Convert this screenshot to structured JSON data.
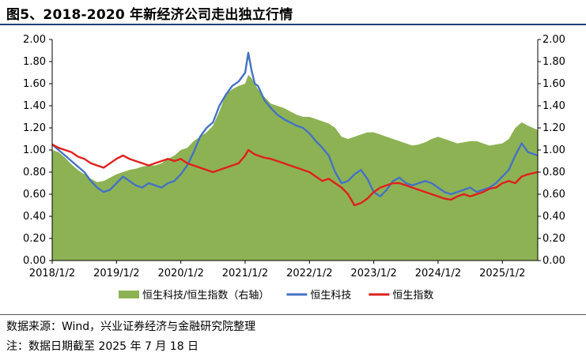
{
  "title": "图5、2018-2020 年新经济公司走出独立行情",
  "source": "数据来源：Wind，兴业证券经济与金融研究院整理",
  "footnote": "注：数据日期截至 2025 年 7 月 18 日",
  "chart_data": {
    "type": "line",
    "x_ticks": [
      "2018/1/2",
      "2019/1/2",
      "2020/1/2",
      "2021/1/2",
      "2022/1/2",
      "2023/1/2",
      "2024/1/2",
      "2025/1/2"
    ],
    "y_ticks_left": [
      "0.00",
      "0.20",
      "0.40",
      "0.60",
      "0.80",
      "1.00",
      "1.20",
      "1.40",
      "1.60",
      "1.80",
      "2.00"
    ],
    "y_ticks_right": [
      "0.00",
      "0.20",
      "0.40",
      "0.60",
      "0.80",
      "1.00",
      "1.20",
      "1.40",
      "1.60",
      "1.80",
      "2.00"
    ],
    "ylim": [
      0,
      2
    ],
    "xlim": [
      2018.0,
      2025.55
    ],
    "grid": false,
    "legend_position": "bottom",
    "series": [
      {
        "name": "恒生科技/恒生指数（右轴）",
        "type": "area",
        "axis": "right",
        "color": "#8db254",
        "x": [
          2018.0,
          2018.1,
          2018.2,
          2018.3,
          2018.4,
          2018.5,
          2018.6,
          2018.7,
          2018.8,
          2018.9,
          2019.0,
          2019.1,
          2019.2,
          2019.3,
          2019.4,
          2019.5,
          2019.6,
          2019.7,
          2019.8,
          2019.9,
          2020.0,
          2020.1,
          2020.2,
          2020.3,
          2020.4,
          2020.5,
          2020.6,
          2020.7,
          2020.8,
          2020.9,
          2021.0,
          2021.05,
          2021.1,
          2021.15,
          2021.2,
          2021.3,
          2021.4,
          2021.5,
          2021.6,
          2021.7,
          2021.8,
          2021.9,
          2022.0,
          2022.1,
          2022.2,
          2022.3,
          2022.4,
          2022.5,
          2022.6,
          2022.7,
          2022.8,
          2022.9,
          2023.0,
          2023.1,
          2023.2,
          2023.3,
          2023.4,
          2023.5,
          2023.6,
          2023.7,
          2023.8,
          2023.9,
          2024.0,
          2024.1,
          2024.2,
          2024.3,
          2024.4,
          2024.5,
          2024.6,
          2024.7,
          2024.8,
          2024.9,
          2025.0,
          2025.1,
          2025.2,
          2025.3,
          2025.4,
          2025.55
        ],
        "values": [
          1.0,
          0.98,
          0.93,
          0.87,
          0.82,
          0.78,
          0.74,
          0.71,
          0.72,
          0.75,
          0.78,
          0.8,
          0.82,
          0.83,
          0.85,
          0.86,
          0.86,
          0.88,
          0.92,
          0.95,
          1.0,
          1.02,
          1.08,
          1.12,
          1.16,
          1.22,
          1.35,
          1.5,
          1.55,
          1.58,
          1.6,
          1.68,
          1.65,
          1.6,
          1.55,
          1.48,
          1.42,
          1.4,
          1.38,
          1.35,
          1.32,
          1.3,
          1.3,
          1.28,
          1.26,
          1.24,
          1.2,
          1.12,
          1.1,
          1.12,
          1.14,
          1.16,
          1.16,
          1.14,
          1.12,
          1.1,
          1.08,
          1.06,
          1.04,
          1.05,
          1.07,
          1.1,
          1.12,
          1.1,
          1.08,
          1.06,
          1.07,
          1.08,
          1.08,
          1.06,
          1.04,
          1.05,
          1.06,
          1.1,
          1.2,
          1.25,
          1.22,
          1.18
        ]
      },
      {
        "name": "恒生科技",
        "type": "line",
        "axis": "left",
        "color": "#4472c4",
        "x": [
          2018.0,
          2018.1,
          2018.2,
          2018.3,
          2018.4,
          2018.5,
          2018.6,
          2018.7,
          2018.8,
          2018.9,
          2019.0,
          2019.1,
          2019.2,
          2019.3,
          2019.4,
          2019.5,
          2019.6,
          2019.7,
          2019.8,
          2019.9,
          2020.0,
          2020.1,
          2020.2,
          2020.3,
          2020.4,
          2020.5,
          2020.6,
          2020.7,
          2020.8,
          2020.9,
          2021.0,
          2021.05,
          2021.1,
          2021.15,
          2021.2,
          2021.3,
          2021.4,
          2021.5,
          2021.6,
          2021.7,
          2021.8,
          2021.9,
          2022.0,
          2022.1,
          2022.2,
          2022.3,
          2022.4,
          2022.5,
          2022.6,
          2022.7,
          2022.8,
          2022.9,
          2023.0,
          2023.1,
          2023.2,
          2023.3,
          2023.4,
          2023.5,
          2023.6,
          2023.7,
          2023.8,
          2023.9,
          2024.0,
          2024.1,
          2024.2,
          2024.3,
          2024.4,
          2024.5,
          2024.6,
          2024.7,
          2024.8,
          2024.9,
          2025.0,
          2025.1,
          2025.2,
          2025.3,
          2025.4,
          2025.55
        ],
        "values": [
          1.05,
          1.0,
          0.95,
          0.9,
          0.85,
          0.8,
          0.72,
          0.66,
          0.62,
          0.64,
          0.7,
          0.76,
          0.72,
          0.68,
          0.66,
          0.7,
          0.68,
          0.66,
          0.7,
          0.72,
          0.78,
          0.86,
          0.98,
          1.12,
          1.2,
          1.25,
          1.4,
          1.5,
          1.58,
          1.62,
          1.7,
          1.88,
          1.72,
          1.6,
          1.58,
          1.45,
          1.38,
          1.32,
          1.28,
          1.25,
          1.22,
          1.2,
          1.15,
          1.08,
          1.02,
          0.95,
          0.8,
          0.7,
          0.72,
          0.78,
          0.82,
          0.74,
          0.62,
          0.58,
          0.64,
          0.72,
          0.75,
          0.7,
          0.68,
          0.7,
          0.72,
          0.7,
          0.66,
          0.62,
          0.6,
          0.62,
          0.64,
          0.66,
          0.62,
          0.64,
          0.66,
          0.7,
          0.76,
          0.82,
          0.95,
          1.06,
          0.98,
          0.95
        ]
      },
      {
        "name": "恒生指数",
        "type": "line",
        "axis": "left",
        "color": "#e0201b",
        "x": [
          2018.0,
          2018.1,
          2018.2,
          2018.3,
          2018.4,
          2018.5,
          2018.6,
          2018.7,
          2018.8,
          2018.9,
          2019.0,
          2019.1,
          2019.2,
          2019.3,
          2019.4,
          2019.5,
          2019.6,
          2019.7,
          2019.8,
          2019.9,
          2020.0,
          2020.1,
          2020.2,
          2020.3,
          2020.4,
          2020.5,
          2020.6,
          2020.7,
          2020.8,
          2020.9,
          2021.0,
          2021.05,
          2021.1,
          2021.15,
          2021.2,
          2021.3,
          2021.4,
          2021.5,
          2021.6,
          2021.7,
          2021.8,
          2021.9,
          2022.0,
          2022.1,
          2022.2,
          2022.3,
          2022.4,
          2022.5,
          2022.6,
          2022.7,
          2022.8,
          2022.9,
          2023.0,
          2023.1,
          2023.2,
          2023.3,
          2023.4,
          2023.5,
          2023.6,
          2023.7,
          2023.8,
          2023.9,
          2024.0,
          2024.1,
          2024.2,
          2024.3,
          2024.4,
          2024.5,
          2024.6,
          2024.7,
          2024.8,
          2024.9,
          2025.0,
          2025.1,
          2025.2,
          2025.3,
          2025.4,
          2025.55
        ],
        "values": [
          1.05,
          1.02,
          1.0,
          0.98,
          0.94,
          0.92,
          0.88,
          0.86,
          0.84,
          0.88,
          0.92,
          0.95,
          0.92,
          0.9,
          0.88,
          0.86,
          0.88,
          0.9,
          0.92,
          0.9,
          0.92,
          0.88,
          0.86,
          0.84,
          0.82,
          0.8,
          0.82,
          0.84,
          0.86,
          0.88,
          0.95,
          1.0,
          0.98,
          0.96,
          0.95,
          0.93,
          0.92,
          0.9,
          0.88,
          0.86,
          0.84,
          0.82,
          0.8,
          0.76,
          0.72,
          0.74,
          0.7,
          0.66,
          0.6,
          0.5,
          0.52,
          0.56,
          0.62,
          0.66,
          0.68,
          0.7,
          0.7,
          0.68,
          0.66,
          0.64,
          0.62,
          0.6,
          0.58,
          0.56,
          0.55,
          0.58,
          0.6,
          0.58,
          0.6,
          0.62,
          0.65,
          0.66,
          0.7,
          0.72,
          0.7,
          0.76,
          0.78,
          0.8
        ]
      }
    ]
  }
}
